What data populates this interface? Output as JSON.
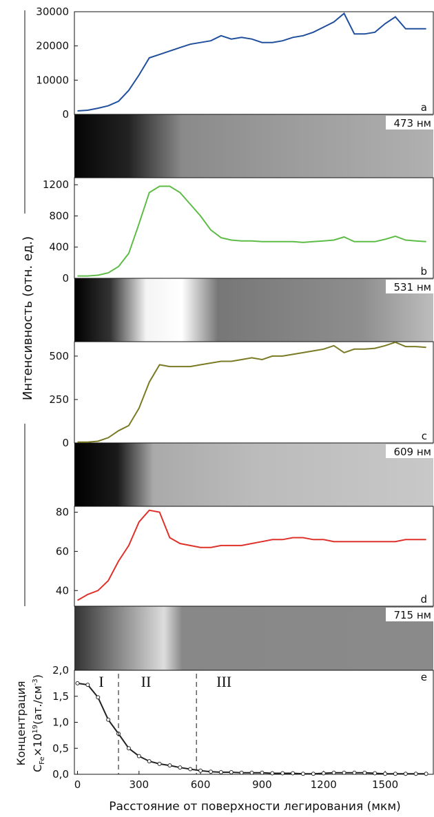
{
  "ylabel": "Интенсивность (отн. ед.)",
  "xlabel": "Расстояние от поверхности легирования (мкм)",
  "e_ylabel": {
    "line1": "Концентрация",
    "c": "C",
    "sub": "Fe",
    "times": "×10",
    "exp": "19",
    "unit": "(ат./см",
    "unit_exp": "-3",
    "close": ")"
  },
  "chart_data": [
    {
      "type": "line",
      "letter": "a",
      "wavelength": "473 нм",
      "xlim": [
        -15,
        1735
      ],
      "ylim": [
        0,
        30000
      ],
      "yticks": [
        0,
        10000,
        20000,
        30000
      ],
      "x": [
        0,
        50,
        100,
        150,
        200,
        250,
        300,
        350,
        400,
        450,
        500,
        550,
        600,
        650,
        700,
        750,
        800,
        850,
        900,
        950,
        1000,
        1050,
        1100,
        1150,
        1200,
        1250,
        1300,
        1350,
        1400,
        1450,
        1500,
        1550,
        1600,
        1650,
        1700
      ],
      "series": [
        {
          "color": "#1f4e9c",
          "values": [
            1000,
            1200,
            1800,
            2500,
            3800,
            7000,
            11500,
            16500,
            17500,
            18500,
            19500,
            20500,
            21000,
            21500,
            23000,
            22000,
            22500,
            22000,
            21000,
            21000,
            21500,
            22500,
            23000,
            24000,
            25500,
            27000,
            29500,
            23500,
            23500,
            24000,
            26500,
            28500,
            25000,
            25000,
            25000
          ]
        }
      ]
    },
    {
      "type": "line",
      "letter": "b",
      "wavelength": "531 нм",
      "xlim": [
        -15,
        1735
      ],
      "ylim": [
        0,
        1290
      ],
      "yticks": [
        0,
        400,
        800,
        1200
      ],
      "x": [
        0,
        50,
        100,
        150,
        200,
        250,
        300,
        350,
        400,
        450,
        500,
        550,
        600,
        650,
        700,
        750,
        800,
        850,
        900,
        950,
        1000,
        1050,
        1100,
        1150,
        1200,
        1250,
        1300,
        1350,
        1400,
        1450,
        1500,
        1550,
        1600,
        1650,
        1700
      ],
      "series": [
        {
          "color": "#5dbb46",
          "values": [
            30,
            30,
            40,
            70,
            150,
            320,
            700,
            1100,
            1180,
            1180,
            1100,
            950,
            800,
            620,
            520,
            490,
            480,
            480,
            470,
            470,
            470,
            470,
            460,
            470,
            480,
            490,
            530,
            470,
            470,
            470,
            500,
            540,
            490,
            480,
            470
          ]
        }
      ]
    },
    {
      "type": "line",
      "letter": "c",
      "wavelength": "609 нм",
      "xlim": [
        -15,
        1735
      ],
      "ylim": [
        0,
        583
      ],
      "yticks": [
        0,
        250,
        500
      ],
      "x": [
        0,
        50,
        100,
        150,
        200,
        250,
        300,
        350,
        400,
        450,
        500,
        550,
        600,
        650,
        700,
        750,
        800,
        850,
        900,
        950,
        1000,
        1050,
        1100,
        1150,
        1200,
        1250,
        1300,
        1350,
        1400,
        1450,
        1500,
        1550,
        1600,
        1650,
        1700
      ],
      "series": [
        {
          "color": "#7a7a24",
          "values": [
            5,
            5,
            10,
            30,
            70,
            100,
            200,
            350,
            450,
            440,
            440,
            440,
            450,
            460,
            470,
            470,
            480,
            490,
            480,
            500,
            500,
            510,
            520,
            530,
            540,
            560,
            520,
            540,
            540,
            545,
            560,
            580,
            555,
            555,
            550
          ]
        }
      ]
    },
    {
      "type": "line",
      "letter": "d",
      "wavelength": "715 нм",
      "xlim": [
        -15,
        1735
      ],
      "ylim": [
        32,
        83
      ],
      "yticks": [
        40,
        60,
        80
      ],
      "x": [
        0,
        50,
        100,
        150,
        200,
        250,
        300,
        350,
        400,
        450,
        500,
        550,
        600,
        650,
        700,
        750,
        800,
        850,
        900,
        950,
        1000,
        1050,
        1100,
        1150,
        1200,
        1250,
        1300,
        1350,
        1400,
        1450,
        1500,
        1550,
        1600,
        1650,
        1700
      ],
      "series": [
        {
          "color": "#e0302a",
          "values": [
            35,
            38,
            40,
            45,
            55,
            63,
            75,
            81,
            80,
            67,
            64,
            63,
            62,
            62,
            63,
            63,
            63,
            64,
            65,
            66,
            66,
            67,
            67,
            66,
            66,
            65,
            65,
            65,
            65,
            65,
            65,
            65,
            66,
            66,
            66
          ]
        }
      ]
    },
    {
      "type": "line",
      "letter": "e",
      "xlim": [
        -15,
        1735
      ],
      "ylim": [
        0,
        2
      ],
      "yticks": [
        {
          "value": 0,
          "label": "0,0"
        },
        {
          "value": 0.5,
          "label": "0,5"
        },
        {
          "value": 1,
          "label": "1,0"
        },
        {
          "value": 1.5,
          "label": "1,5"
        },
        {
          "value": 2,
          "label": "2,0"
        }
      ],
      "xticks": [
        0,
        300,
        600,
        900,
        1200,
        1500
      ],
      "regions": [
        {
          "label": "I",
          "boundary": 200
        },
        {
          "label": "II",
          "boundary": 580
        },
        {
          "label": "III"
        }
      ],
      "x": [
        0,
        50,
        100,
        150,
        200,
        250,
        300,
        350,
        400,
        450,
        500,
        550,
        600,
        650,
        700,
        750,
        800,
        850,
        900,
        950,
        1000,
        1050,
        1100,
        1150,
        1200,
        1250,
        1300,
        1350,
        1400,
        1450,
        1500,
        1550,
        1600,
        1650,
        1700
      ],
      "series": [
        {
          "color": "#222222",
          "values": [
            1.75,
            1.72,
            1.48,
            1.05,
            0.78,
            0.5,
            0.35,
            0.25,
            0.2,
            0.17,
            0.13,
            0.1,
            0.07,
            0.05,
            0.04,
            0.04,
            0.03,
            0.03,
            0.03,
            0.02,
            0.02,
            0.02,
            0.01,
            0.01,
            0.02,
            0.03,
            0.03,
            0.03,
            0.03,
            0.02,
            0.01,
            0.01,
            0.01,
            0.01,
            0.01
          ]
        }
      ]
    }
  ]
}
